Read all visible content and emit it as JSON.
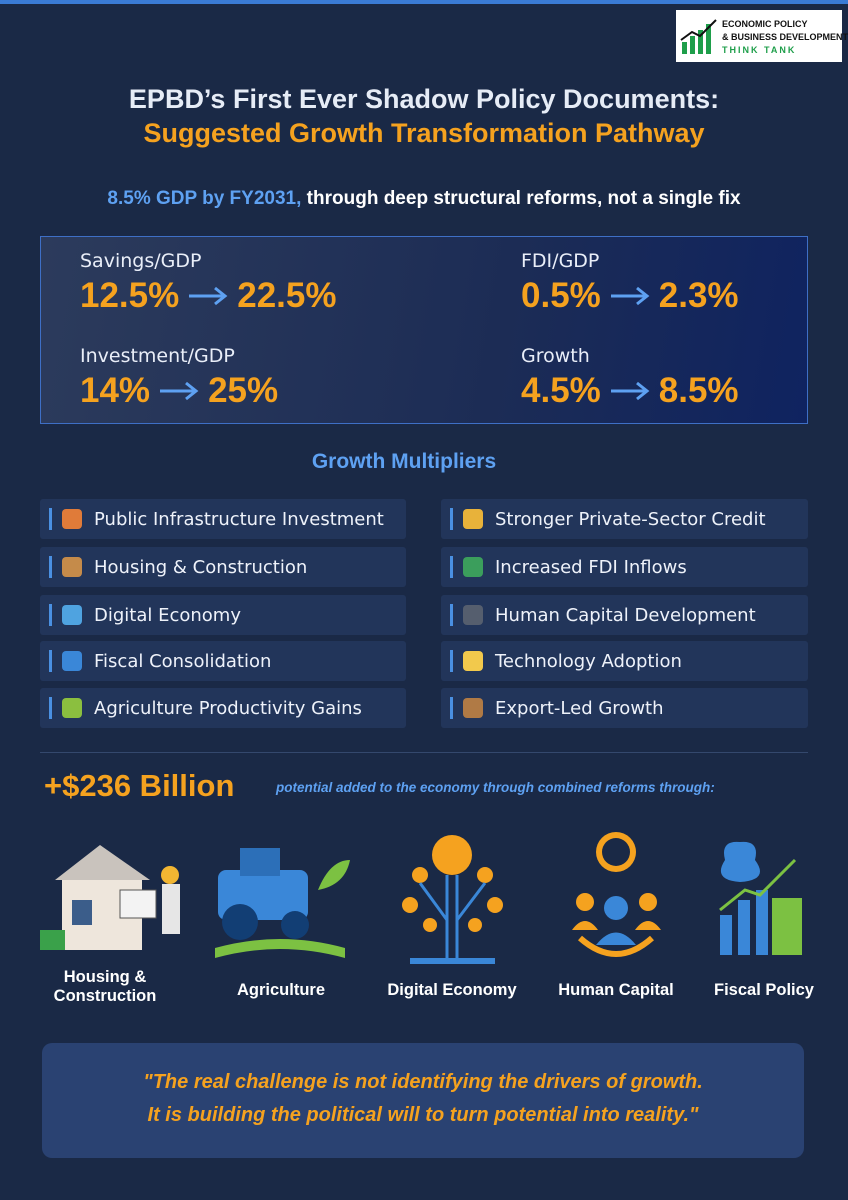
{
  "logo": {
    "line1": "ECONOMIC POLICY",
    "line2": "& BUSINESS DEVELOPMENT",
    "line3": "THINK TANK"
  },
  "title": {
    "line1": "EPBD’s First Ever Shadow Policy Documents:",
    "line2": "Suggested Growth Transformation Pathway"
  },
  "subtitle": {
    "highlight": "8.5% GDP by FY2031,",
    "rest": "through deep structural reforms, not a single fix"
  },
  "metrics": [
    {
      "label": "Savings/GDP",
      "from": "12.5%",
      "to": "22.5%"
    },
    {
      "label": "FDI/GDP",
      "from": "0.5%",
      "to": "2.3%"
    },
    {
      "label": "Investment/GDP",
      "from": "14%",
      "to": "25%"
    },
    {
      "label": "Growth",
      "from": "4.5%",
      "to": "8.5%"
    }
  ],
  "multipliers": {
    "title": "Growth Multipliers",
    "left": [
      "Public Infrastructure Investment",
      "Housing & Construction",
      "Digital Economy",
      "Fiscal Consolidation",
      "Agriculture Productivity Gains"
    ],
    "right": [
      "Stronger Private-Sector Credit",
      "Increased FDI Inflows",
      "Human Capital Development",
      "Technology Adoption",
      "Export-Led Growth"
    ]
  },
  "potential": {
    "amount": "+$236 Billion",
    "text": "potential added to the economy through combined reforms through:"
  },
  "sectors": [
    "Housing & Construction",
    "Agriculture",
    "Digital Economy",
    "Human Capital",
    "Fiscal Policy"
  ],
  "quote": {
    "line1": "\"The real challenge is not identifying the drivers of growth.",
    "line2": "It is building the political will to turn potential into reality.\""
  }
}
